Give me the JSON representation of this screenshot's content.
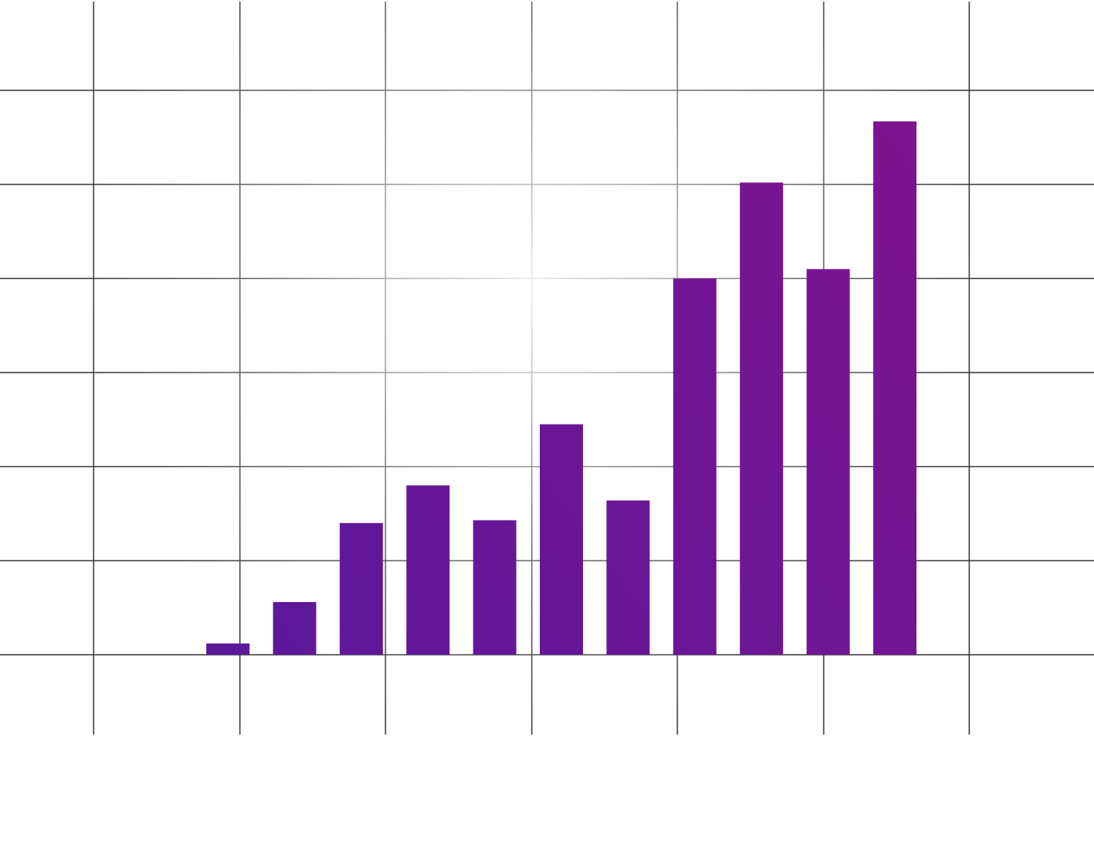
{
  "chart_data": {
    "type": "bar",
    "categories": [
      null,
      null,
      null,
      null,
      null,
      null,
      null,
      null,
      null,
      null,
      null
    ],
    "values": [
      0.12,
      0.56,
      1.4,
      1.8,
      1.43,
      2.45,
      1.64,
      4.0,
      5.02,
      4.1,
      5.67
    ],
    "gradient": [
      "#5a189a",
      "#7e1490"
    ],
    "ylim": [
      0,
      6
    ],
    "yticks": [
      0,
      1,
      2,
      3,
      4,
      5,
      6
    ],
    "grid": true
  }
}
